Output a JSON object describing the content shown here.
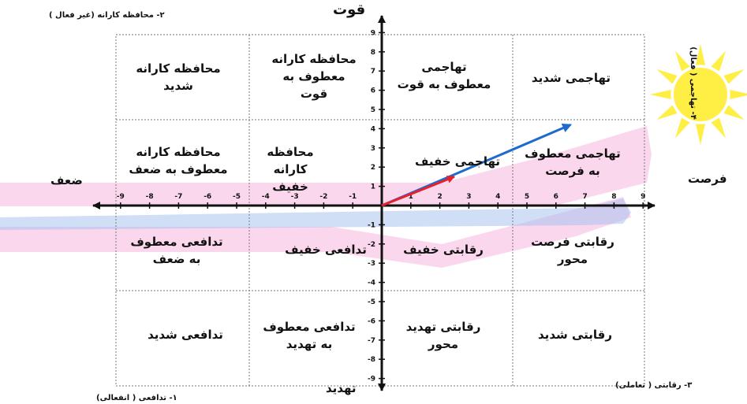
{
  "axis_labels": {
    "strength": "قوت",
    "threat": "تهدید",
    "weakness": "ضعف",
    "opportunity": "فرصت"
  },
  "corner_labels": {
    "top_left": "۲- محافظه کارانه (غیر فعال )",
    "top_right": "۴- تهاجمی ( فعال)",
    "bottom_left": "۱- تدافعی ( انفعالی)",
    "bottom_right": "۳- رقابتی ( تعاملی)"
  },
  "cells": [
    {
      "key": "c00",
      "text": "محافظه کارانه شدید"
    },
    {
      "key": "c01",
      "text": "محافظه کارانه معطوف به قوت"
    },
    {
      "key": "c02",
      "text": "تهاجمی معطوف به قوت"
    },
    {
      "key": "c03",
      "text": "تهاجمی شدید"
    },
    {
      "key": "c10",
      "text": "محافظه کارانه معطوف به ضعف"
    },
    {
      "key": "c11",
      "text": "محافظه کارانه خفیف"
    },
    {
      "key": "c12",
      "text": "تهاجمی خفیف"
    },
    {
      "key": "c13",
      "text": "تهاجمی معطوف به فرصت"
    },
    {
      "key": "c20",
      "text": "تدافعی معطوف به ضعف"
    },
    {
      "key": "c21",
      "text": "تدافعی خفیف"
    },
    {
      "key": "c22",
      "text": "رقابتی خفیف"
    },
    {
      "key": "c23",
      "text": "رقابتی فرصت محور"
    },
    {
      "key": "c30",
      "text": "تدافعی شدید"
    },
    {
      "key": "c31",
      "text": "تدافعی معطوف به تهدید"
    },
    {
      "key": "c32",
      "text": "رقابتی تهدید محور"
    },
    {
      "key": "c33",
      "text": "رقابتی شدید"
    }
  ],
  "x_ticks": {
    "negative": [
      "-1",
      "-2",
      "-3",
      "-4",
      "-5",
      "-6",
      "-7",
      "-8",
      "-9"
    ],
    "positive": [
      "1",
      "2",
      "3",
      "4",
      "5",
      "6",
      "7",
      "8",
      "9"
    ]
  },
  "y_ticks": {
    "positive": [
      "1",
      "2",
      "3",
      "4",
      "5",
      "6",
      "7",
      "8",
      "9"
    ],
    "negative": [
      "-1",
      "-2",
      "-3",
      "-4",
      "-5",
      "-6",
      "-7",
      "-8",
      "-9"
    ]
  },
  "vectors": {
    "red": {
      "to": [
        2.5,
        1.5
      ],
      "color": "#e8202a"
    },
    "blue": {
      "to": [
        6.5,
        4.2
      ],
      "color": "#1e6ad0"
    }
  },
  "colors": {
    "sun": "#ffee44",
    "band_pink": "#f3a6d6",
    "band_blue": "#a9c3ee"
  }
}
